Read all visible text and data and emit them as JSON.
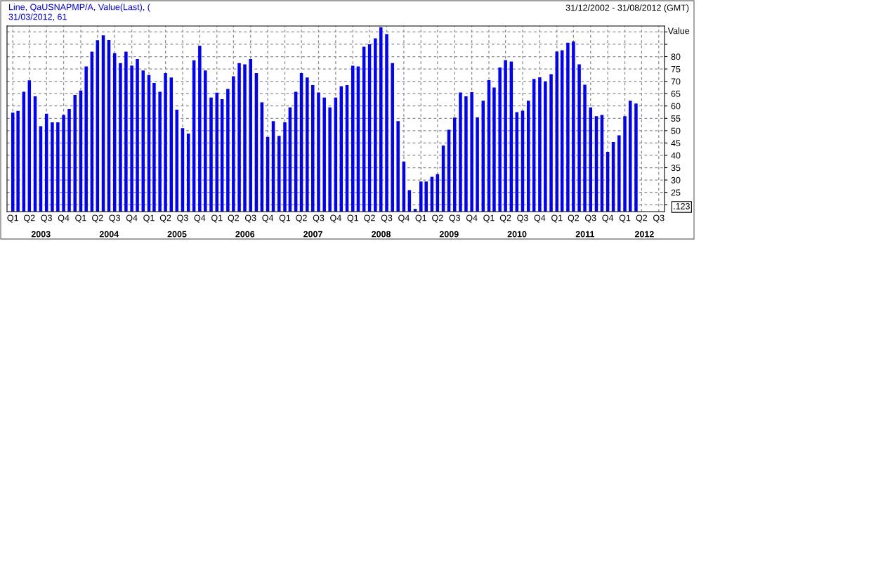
{
  "chart_data": {
    "type": "bar",
    "subtitle": "31/12/2002 - 31/08/2012 (GMT)",
    "ylabel": "Value",
    "annotations": [
      "Line, QaUSNAPMP/A, Value(Last), (",
      "31/03/2012, 61",
      ".123"
    ],
    "x": [
      "2003-01-31",
      "2003-02-28",
      "2003-03-31",
      "2003-04-30",
      "2003-05-31",
      "2003-06-30",
      "2003-07-31",
      "2003-08-31",
      "2003-09-30",
      "2003-10-31",
      "2003-11-30",
      "2003-12-31",
      "2004-01-31",
      "2004-02-29",
      "2004-03-31",
      "2004-04-30",
      "2004-05-31",
      "2004-06-30",
      "2004-07-31",
      "2004-08-31",
      "2004-09-30",
      "2004-10-31",
      "2004-11-30",
      "2004-12-31",
      "2005-01-31",
      "2005-02-28",
      "2005-03-31",
      "2005-04-30",
      "2005-05-31",
      "2005-06-30",
      "2005-07-31",
      "2005-08-31",
      "2005-09-30",
      "2005-10-31",
      "2005-11-30",
      "2005-12-31",
      "2006-01-31",
      "2006-02-28",
      "2006-03-31",
      "2006-04-30",
      "2006-05-31",
      "2006-06-30",
      "2006-07-31",
      "2006-08-31",
      "2006-09-30",
      "2006-10-31",
      "2006-11-30",
      "2006-12-31",
      "2007-01-31",
      "2007-02-28",
      "2007-03-31",
      "2007-04-30",
      "2007-05-31",
      "2007-06-30",
      "2007-07-31",
      "2007-08-31",
      "2007-09-30",
      "2007-10-31",
      "2007-11-30",
      "2007-12-31",
      "2008-01-31",
      "2008-02-29",
      "2008-03-31",
      "2008-04-30",
      "2008-05-31",
      "2008-06-30",
      "2008-07-31",
      "2008-08-31",
      "2008-09-30",
      "2008-10-31",
      "2008-11-30",
      "2008-12-31",
      "2009-01-31",
      "2009-02-28",
      "2009-03-31",
      "2009-04-30",
      "2009-05-31",
      "2009-06-30",
      "2009-07-31",
      "2009-08-31",
      "2009-09-30",
      "2009-10-31",
      "2009-11-30",
      "2009-12-31",
      "2010-01-31",
      "2010-02-28",
      "2010-03-31",
      "2010-04-30",
      "2010-05-31",
      "2010-06-30",
      "2010-07-31",
      "2010-08-31",
      "2010-09-30",
      "2010-10-31",
      "2010-11-30",
      "2010-12-31",
      "2011-01-31",
      "2011-02-28",
      "2011-03-31",
      "2011-04-30",
      "2011-05-31",
      "2011-06-30",
      "2011-07-31",
      "2011-08-31",
      "2011-09-30",
      "2011-10-31",
      "2011-11-30",
      "2011-12-31",
      "2012-01-31",
      "2012-02-29",
      "2012-03-31"
    ],
    "series": [
      {
        "color": "#0000ff",
        "values": [
          57.3,
          58.0,
          65.8,
          70.4,
          63.9,
          51.8,
          56.9,
          53.4,
          53.4,
          56.4,
          58.8,
          64.5,
          66.3,
          76.0,
          82.0,
          86.6,
          88.6,
          86.7,
          81.4,
          77.4,
          82.0,
          76.4,
          79.0,
          74.4,
          72.5,
          69.3,
          65.8,
          73.3,
          71.5,
          58.5,
          51.0,
          48.8,
          78.5,
          84.4,
          74.4,
          63.4,
          65.4,
          62.8,
          66.9,
          72.0,
          77.4,
          76.9,
          79.0,
          73.3,
          61.5,
          47.5,
          53.9,
          47.9,
          53.4,
          59.4,
          65.8,
          73.3,
          71.5,
          68.5,
          65.5,
          63.4,
          59.4,
          63.4,
          68.0,
          68.5,
          76.3,
          76.0,
          84.0,
          85.0,
          87.4,
          91.9,
          89.1,
          77.4,
          53.9,
          37.5,
          25.9,
          18.3,
          29.4,
          29.4,
          31.3,
          32.4,
          44.0,
          50.4,
          55.3,
          65.5,
          63.9,
          65.6,
          55.4,
          62.1,
          70.5,
          67.5,
          75.6,
          78.6,
          78.0,
          57.5,
          58.1,
          62.1,
          71.0,
          71.6,
          69.9,
          72.9,
          82.1,
          82.6,
          85.6,
          86.1,
          76.9,
          68.6,
          59.4,
          55.9,
          56.4,
          41.4,
          45.4,
          48.1,
          55.9,
          62.1,
          61
        ]
      }
    ],
    "xlim": [
      "2002-12-31",
      "2012-08-31"
    ],
    "xticks": [
      {
        "value": "2003-01-31",
        "label": "Q1"
      },
      {
        "value": "2003-04-30",
        "label": "Q2"
      },
      {
        "value": "2003-07-31",
        "label": "Q3"
      },
      {
        "value": "2003-10-31",
        "label": "Q4"
      },
      {
        "value": "2004-01-31",
        "label": "Q1"
      },
      {
        "value": "2004-04-30",
        "label": "Q2"
      },
      {
        "value": "2004-07-31",
        "label": "Q3"
      },
      {
        "value": "2004-10-31",
        "label": "Q4"
      },
      {
        "value": "2005-01-31",
        "label": "Q1"
      },
      {
        "value": "2005-04-30",
        "label": "Q2"
      },
      {
        "value": "2005-07-31",
        "label": "Q3"
      },
      {
        "value": "2005-10-31",
        "label": "Q4"
      },
      {
        "value": "2006-01-31",
        "label": "Q1"
      },
      {
        "value": "2006-04-30",
        "label": "Q2"
      },
      {
        "value": "2006-07-31",
        "label": "Q3"
      },
      {
        "value": "2006-10-31",
        "label": "Q4"
      },
      {
        "value": "2007-01-31",
        "label": "Q1"
      },
      {
        "value": "2007-04-30",
        "label": "Q2"
      },
      {
        "value": "2007-07-31",
        "label": "Q3"
      },
      {
        "value": "2007-10-31",
        "label": "Q4"
      },
      {
        "value": "2008-01-31",
        "label": "Q1"
      },
      {
        "value": "2008-04-30",
        "label": "Q2"
      },
      {
        "value": "2008-07-31",
        "label": "Q3"
      },
      {
        "value": "2008-10-31",
        "label": "Q4"
      },
      {
        "value": "2009-01-31",
        "label": "Q1"
      },
      {
        "value": "2009-04-30",
        "label": "Q2"
      },
      {
        "value": "2009-07-31",
        "label": "Q3"
      },
      {
        "value": "2009-10-31",
        "label": "Q4"
      },
      {
        "value": "2010-01-31",
        "label": "Q1"
      },
      {
        "value": "2010-04-30",
        "label": "Q2"
      },
      {
        "value": "2010-07-31",
        "label": "Q3"
      },
      {
        "value": "2010-10-31",
        "label": "Q4"
      },
      {
        "value": "2011-01-31",
        "label": "Q1"
      },
      {
        "value": "2011-04-30",
        "label": "Q2"
      },
      {
        "value": "2011-07-31",
        "label": "Q3"
      },
      {
        "value": "2011-10-31",
        "label": "Q4"
      },
      {
        "value": "2012-01-31",
        "label": "Q1"
      },
      {
        "value": "2012-04-30",
        "label": "Q2"
      },
      {
        "value": "2012-07-31",
        "label": "Q3"
      }
    ],
    "x2lim": [
      "2002-12-31",
      "2012-08-31"
    ],
    "x2ticks": [
      {
        "value": "2003-07-01",
        "label": "2003"
      },
      {
        "value": "2004-07-01",
        "label": "2004"
      },
      {
        "value": "2005-07-01",
        "label": "2005"
      },
      {
        "value": "2006-07-01",
        "label": "2006"
      },
      {
        "value": "2007-07-01",
        "label": "2007"
      },
      {
        "value": "2008-07-01",
        "label": "2008"
      },
      {
        "value": "2009-07-01",
        "label": "2009"
      },
      {
        "value": "2010-07-01",
        "label": "2010"
      },
      {
        "value": "2011-07-01",
        "label": "2011"
      },
      {
        "value": "2012-05-15",
        "label": "2012"
      }
    ],
    "ylim": [
      17.2,
      92.4
    ],
    "yticks": [
      {
        "value": 20,
        "label": null
      },
      25,
      30,
      35,
      40,
      45,
      50,
      55,
      60,
      65,
      70,
      75,
      80,
      {
        "value": 85,
        "label": null
      },
      {
        "value": 90,
        "label": null
      }
    ],
    "grid": true
  }
}
